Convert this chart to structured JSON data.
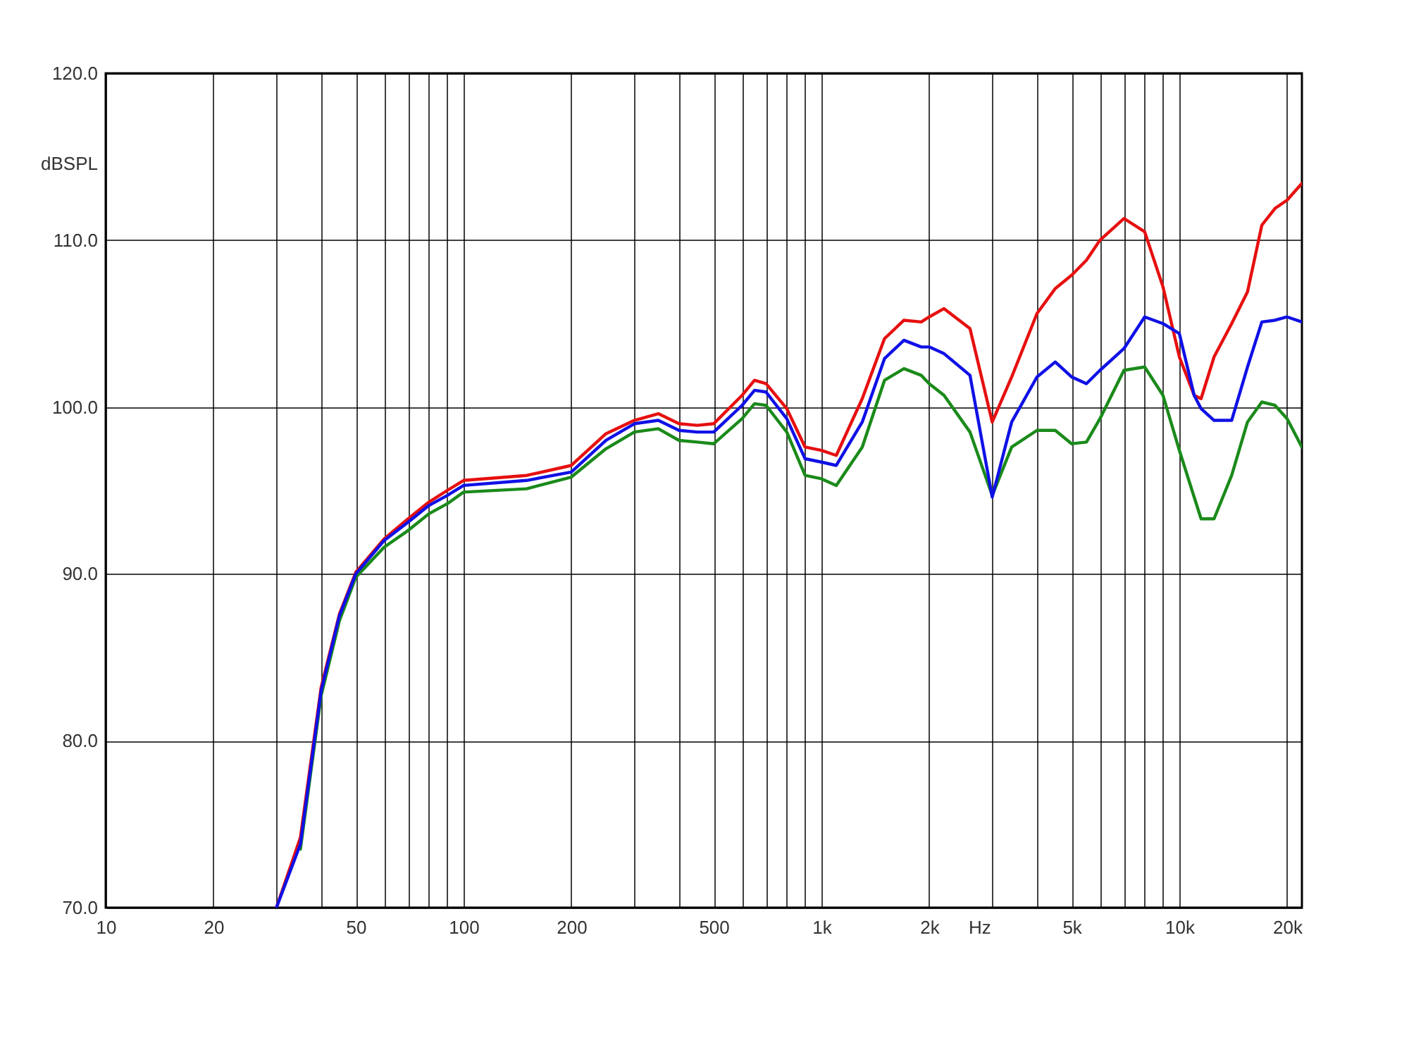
{
  "chart_data": {
    "type": "line",
    "xlabel": "Hz",
    "ylabel": "dBSPL",
    "log": "x",
    "grid": true,
    "legend": false,
    "x": [
      30,
      35,
      40,
      45,
      50,
      60,
      70,
      80,
      90,
      100,
      150,
      200,
      250,
      300,
      350,
      400,
      450,
      500,
      600,
      650,
      700,
      800,
      900,
      1000,
      1100,
      1300,
      1500,
      1700,
      1900,
      2000,
      2200,
      2600,
      3000,
      3400,
      4000,
      4500,
      5000,
      5500,
      6000,
      7000,
      8000,
      9000,
      10000,
      11000,
      11500,
      12500,
      14000,
      15500,
      17000,
      18500,
      20000,
      22000
    ],
    "xlim": [
      10,
      22000
    ],
    "xticks": [
      10,
      20,
      {
        "value": 30,
        "label": null
      },
      {
        "value": 40,
        "label": null
      },
      50,
      {
        "value": 60,
        "label": null
      },
      {
        "value": 70,
        "label": null
      },
      {
        "value": 80,
        "label": null
      },
      {
        "value": 90,
        "label": null
      },
      100,
      200,
      {
        "value": 300,
        "label": null
      },
      {
        "value": 400,
        "label": null
      },
      500,
      {
        "value": 600,
        "label": null
      },
      {
        "value": 700,
        "label": null
      },
      {
        "value": 800,
        "label": null
      },
      {
        "value": 900,
        "label": null
      },
      {
        "value": 1000,
        "label": "1k"
      },
      {
        "value": 2000,
        "label": "2k"
      },
      {
        "value": 3000,
        "label": null
      },
      {
        "value": 4000,
        "label": null
      },
      {
        "value": 5000,
        "label": "5k"
      },
      {
        "value": 6000,
        "label": null
      },
      {
        "value": 7000,
        "label": null
      },
      {
        "value": 8000,
        "label": null
      },
      {
        "value": 9000,
        "label": null
      },
      {
        "value": 10000,
        "label": "10k"
      },
      {
        "value": 20000,
        "label": "20k"
      }
    ],
    "ylim": [
      70,
      120
    ],
    "yticks": [
      {
        "value": 70,
        "label": "70.0"
      },
      {
        "value": 80,
        "label": "80.0"
      },
      {
        "value": 90,
        "label": "90.0"
      },
      {
        "value": 100,
        "label": "100.0"
      },
      {
        "value": 110,
        "label": "110.0"
      },
      {
        "value": 120,
        "label": "120.0"
      }
    ],
    "series": [
      {
        "color": "#e61010",
        "values": [
          70.0,
          74.2,
          83.2,
          87.6,
          90.1,
          92.1,
          93.3,
          94.3,
          95.0,
          95.6,
          95.9,
          96.5,
          98.4,
          99.2,
          99.6,
          99.0,
          98.9,
          99.0,
          100.7,
          101.6,
          101.4,
          99.9,
          97.6,
          97.4,
          97.1,
          100.5,
          104.1,
          105.2,
          105.1,
          105.4,
          105.9,
          104.7,
          99.1,
          101.8,
          105.6,
          107.1,
          107.9,
          108.8,
          110.0,
          111.3,
          110.5,
          107.2,
          103.0,
          100.7,
          100.5,
          103.0,
          105.0,
          106.9,
          110.9,
          111.9,
          112.4,
          113.4
        ]
      },
      {
        "color": "#1a8a1a",
        "values": [
          null,
          73.5,
          82.7,
          87.2,
          89.8,
          91.6,
          92.6,
          93.6,
          94.2,
          94.9,
          95.1,
          95.8,
          97.5,
          98.5,
          98.7,
          98.0,
          97.9,
          97.8,
          99.3,
          100.2,
          100.1,
          98.5,
          95.9,
          95.7,
          95.3,
          97.6,
          101.6,
          102.3,
          101.9,
          101.4,
          100.7,
          98.5,
          94.7,
          97.6,
          98.6,
          98.6,
          97.8,
          97.9,
          99.3,
          102.2,
          102.4,
          100.7,
          97.4,
          94.6,
          93.3,
          93.3,
          95.9,
          99.1,
          100.3,
          100.1,
          99.3,
          97.6
        ]
      },
      {
        "color": "#1010e6",
        "values": [
          70.0,
          73.8,
          83.0,
          87.5,
          90.0,
          92.0,
          93.1,
          94.1,
          94.7,
          95.3,
          95.6,
          96.1,
          98.0,
          99.0,
          99.2,
          98.6,
          98.5,
          98.5,
          100.1,
          101.0,
          100.9,
          99.3,
          96.9,
          96.7,
          96.5,
          99.1,
          102.9,
          104.0,
          103.6,
          103.6,
          103.2,
          101.9,
          94.6,
          99.1,
          101.8,
          102.7,
          101.8,
          101.4,
          102.2,
          103.5,
          105.4,
          105.0,
          104.4,
          100.7,
          99.9,
          99.2,
          99.2,
          102.4,
          105.1,
          105.2,
          105.4,
          105.1
        ]
      }
    ]
  }
}
